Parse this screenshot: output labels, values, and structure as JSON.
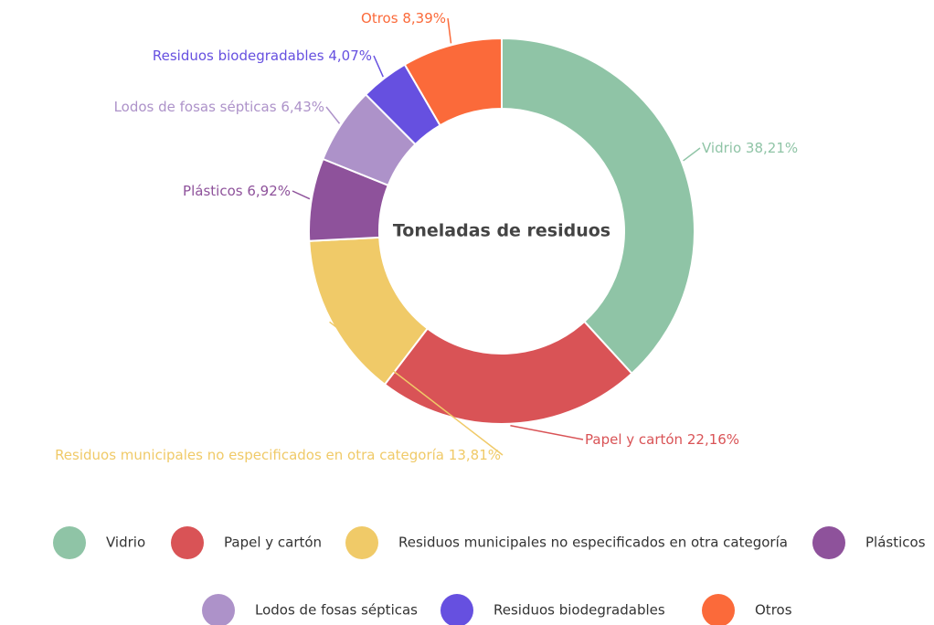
{
  "chart_data": {
    "type": "donut",
    "title": "Toneladas de residuos",
    "categories": [
      "Vidrio",
      "Papel y cartón",
      "Residuos municipales no especificados en otra categoría",
      "Plásticos",
      "Lodos de fosas sépticas",
      "Residuos biodegradables",
      "Otros"
    ],
    "values": [
      38.21,
      22.16,
      13.81,
      6.92,
      6.43,
      4.07,
      8.39
    ],
    "value_labels": [
      "38,21%",
      "22,16%",
      "13,81%",
      "6,92%",
      "6,43%",
      "4,07%",
      "8,39%"
    ],
    "colors": [
      "#8fc4a6",
      "#d95356",
      "#f0ca68",
      "#8e529b",
      "#ad92c9",
      "#6650e0",
      "#fb6a3a"
    ],
    "legend": "bottom"
  }
}
